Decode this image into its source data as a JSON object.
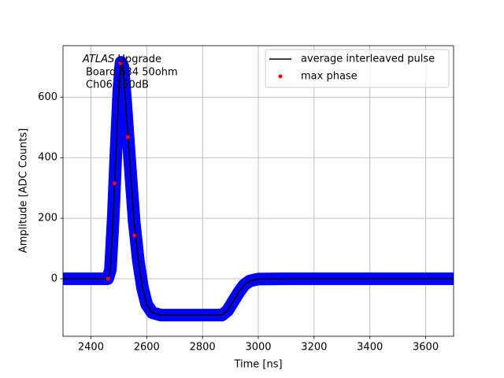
{
  "chart_data": {
    "type": "line",
    "xlabel": "Time [ns]",
    "ylabel": "Amplitude [ADC Counts]",
    "xlim": [
      2300,
      3700
    ],
    "ylim": [
      -190,
      770
    ],
    "xticks": [
      2400,
      2600,
      2800,
      3000,
      3200,
      3400,
      3600
    ],
    "yticks": [
      0,
      200,
      400,
      600
    ],
    "grid": true,
    "legend": "upper right",
    "band_color": "#0000ff",
    "annotation": {
      "experiment": "ATLAS",
      "label": "Upgrade",
      "lines": [
        "Board 634 50ohm",
        "Ch06 150dB"
      ]
    },
    "series": [
      {
        "name": "average interleaved pulse",
        "color": "#000000",
        "x": [
          2300,
          2460,
          2470,
          2480,
          2490,
          2500,
          2508,
          2515,
          2525,
          2540,
          2555,
          2570,
          2585,
          2600,
          2620,
          2650,
          2700,
          2800,
          2870,
          2890,
          2910,
          2930,
          2950,
          2970,
          3000,
          3100,
          3700
        ],
        "values": [
          0,
          0,
          30,
          200,
          420,
          620,
          715,
          700,
          580,
          380,
          190,
          60,
          -30,
          -85,
          -112,
          -120,
          -120,
          -120,
          -120,
          -105,
          -75,
          -45,
          -20,
          -7,
          -1,
          0,
          0
        ]
      },
      {
        "name": "max phase",
        "color": "#ff0000",
        "type": "scatter",
        "x": [
          2462,
          2484,
          2506,
          2532,
          2556
        ],
        "values": [
          0,
          315,
          712,
          468,
          143
        ]
      }
    ]
  }
}
